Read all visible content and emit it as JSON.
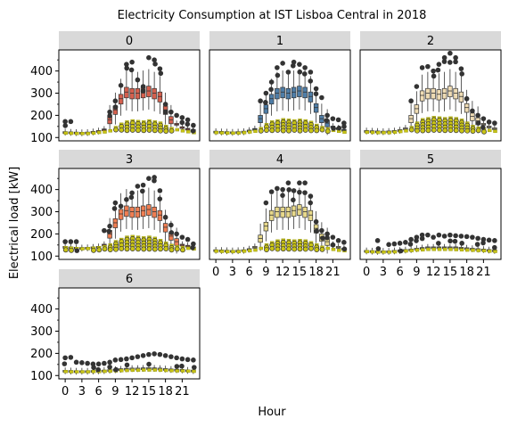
{
  "chart_data": {
    "type": "boxplot-facet",
    "title": "Electricity Consumption at IST Lisboa Central in 2018",
    "xlabel": "Hour",
    "ylabel": "Electrical load [kW]",
    "ylim": [
      85,
      495
    ],
    "yticks": [
      100,
      200,
      300,
      400
    ],
    "xtick_labels": [
      "0",
      "3",
      "6",
      "9",
      "12",
      "15",
      "18",
      "21"
    ],
    "hours": [
      0,
      1,
      2,
      3,
      4,
      5,
      6,
      7,
      8,
      9,
      10,
      11,
      12,
      13,
      14,
      15,
      16,
      17,
      18,
      19,
      20,
      21,
      22,
      23
    ],
    "colors": {
      "0": "#d5604e",
      "1": "#4f7ea8",
      "2": "#efdcb4",
      "3": "#f07e52",
      "4": "#e8d98a",
      "5": "#f0e2b0",
      "6": "#f4eee0",
      "yellow_box": "#c9c415",
      "outlier": "#333333",
      "strip_bg": "#d9d9d9"
    },
    "facets": [
      {
        "label": "0",
        "main_median": [
          123,
          122,
          121,
          120,
          121,
          124,
          128,
          135,
          180,
          225,
          275,
          305,
          300,
          300,
          305,
          310,
          300,
          285,
          225,
          180,
          160,
          145,
          138,
          132
        ],
        "yellow_median": [
          120,
          119,
          118,
          118,
          118,
          120,
          123,
          125,
          130,
          145,
          160,
          170,
          175,
          172,
          170,
          175,
          170,
          165,
          150,
          140,
          135,
          130,
          126,
          122
        ],
        "outliers_high": [
          [
            0,
            172
          ],
          [
            1,
            172
          ],
          [
            8,
            215
          ],
          [
            9,
            265
          ],
          [
            10,
            335
          ],
          [
            11,
            430
          ],
          [
            12,
            440
          ],
          [
            13,
            360
          ],
          [
            14,
            330
          ],
          [
            15,
            460
          ],
          [
            16,
            450
          ],
          [
            17,
            410
          ],
          [
            18,
            250
          ],
          [
            19,
            215
          ],
          [
            20,
            200
          ],
          [
            21,
            190
          ],
          [
            22,
            180
          ],
          [
            23,
            155
          ]
        ]
      },
      {
        "label": "1",
        "main_median": [
          125,
          124,
          123,
          122,
          123,
          125,
          130,
          137,
          185,
          230,
          275,
          300,
          305,
          300,
          305,
          310,
          305,
          285,
          235,
          185,
          165,
          148,
          140,
          133
        ],
        "yellow_median": [
          122,
          121,
          120,
          120,
          120,
          122,
          125,
          128,
          140,
          158,
          170,
          175,
          180,
          178,
          175,
          178,
          175,
          168,
          155,
          145,
          138,
          132,
          128,
          124
        ],
        "outliers_high": [
          [
            8,
            265
          ],
          [
            9,
            300
          ],
          [
            10,
            350
          ],
          [
            11,
            415
          ],
          [
            12,
            435
          ],
          [
            13,
            395
          ],
          [
            14,
            440
          ],
          [
            15,
            430
          ],
          [
            16,
            415
          ],
          [
            17,
            395
          ],
          [
            18,
            320
          ],
          [
            19,
            280
          ],
          [
            20,
            200
          ],
          [
            21,
            185
          ],
          [
            22,
            180
          ],
          [
            23,
            165
          ]
        ]
      },
      {
        "label": "2",
        "main_median": [
          128,
          127,
          126,
          125,
          126,
          128,
          132,
          140,
          185,
          230,
          290,
          300,
          300,
          295,
          300,
          310,
          300,
          285,
          235,
          195,
          175,
          160,
          148,
          140
        ],
        "yellow_median": [
          124,
          123,
          122,
          122,
          122,
          124,
          127,
          130,
          145,
          165,
          180,
          185,
          190,
          188,
          185,
          188,
          185,
          178,
          165,
          150,
          142,
          136,
          132,
          128
        ],
        "outliers_high": [
          [
            8,
            265
          ],
          [
            9,
            330
          ],
          [
            10,
            415
          ],
          [
            11,
            420
          ],
          [
            12,
            400
          ],
          [
            13,
            430
          ],
          [
            14,
            460
          ],
          [
            15,
            480
          ],
          [
            16,
            460
          ],
          [
            17,
            410
          ],
          [
            18,
            275
          ],
          [
            19,
            220
          ],
          [
            20,
            200
          ],
          [
            21,
            185
          ],
          [
            22,
            170
          ],
          [
            23,
            165
          ]
        ]
      },
      {
        "label": "3",
        "main_median": [
          140,
          138,
          136,
          135,
          136,
          138,
          140,
          150,
          200,
          250,
          290,
          305,
          300,
          300,
          305,
          310,
          300,
          285,
          230,
          190,
          165,
          150,
          145,
          138
        ],
        "yellow_median": [
          138,
          136,
          134,
          133,
          134,
          136,
          138,
          142,
          150,
          165,
          175,
          185,
          188,
          185,
          182,
          185,
          180,
          170,
          158,
          148,
          142,
          138,
          135,
          132
        ],
        "outliers_high": [
          [
            0,
            165
          ],
          [
            1,
            165
          ],
          [
            2,
            165
          ],
          [
            7,
            215
          ],
          [
            8,
            235
          ],
          [
            9,
            340
          ],
          [
            10,
            325
          ],
          [
            11,
            355
          ],
          [
            12,
            385
          ],
          [
            13,
            415
          ],
          [
            14,
            420
          ],
          [
            15,
            450
          ],
          [
            16,
            455
          ],
          [
            17,
            395
          ],
          [
            18,
            275
          ],
          [
            19,
            240
          ],
          [
            20,
            200
          ],
          [
            21,
            185
          ],
          [
            22,
            175
          ],
          [
            23,
            155
          ]
        ]
      },
      {
        "label": "4",
        "main_median": [
          125,
          124,
          123,
          122,
          123,
          125,
          130,
          140,
          180,
          235,
          285,
          300,
          300,
          300,
          305,
          310,
          300,
          285,
          225,
          185,
          165,
          150,
          140,
          132
        ],
        "yellow_median": [
          122,
          121,
          120,
          120,
          120,
          122,
          124,
          127,
          135,
          150,
          160,
          168,
          172,
          170,
          168,
          170,
          168,
          160,
          150,
          140,
          135,
          130,
          126,
          124
        ],
        "outliers_high": [
          [
            9,
            340
          ],
          [
            10,
            390
          ],
          [
            11,
            405
          ],
          [
            12,
            400
          ],
          [
            13,
            430
          ],
          [
            14,
            395
          ],
          [
            15,
            430
          ],
          [
            16,
            430
          ],
          [
            17,
            370
          ],
          [
            18,
            255
          ],
          [
            19,
            215
          ],
          [
            20,
            200
          ],
          [
            21,
            185
          ],
          [
            22,
            170
          ],
          [
            23,
            162
          ]
        ]
      },
      {
        "label": "5",
        "main_median": [
          122,
          121,
          120,
          120,
          120,
          122,
          124,
          126,
          128,
          132,
          135,
          138,
          138,
          138,
          138,
          138,
          138,
          136,
          134,
          132,
          130,
          128,
          126,
          124
        ],
        "yellow_median": [
          120,
          119,
          118,
          118,
          118,
          119,
          121,
          123,
          125,
          127,
          128,
          130,
          130,
          130,
          130,
          130,
          129,
          128,
          127,
          126,
          125,
          124,
          122,
          121
        ],
        "outliers_high": [
          [
            2,
            170
          ],
          [
            4,
            152
          ],
          [
            5,
            155
          ],
          [
            6,
            158
          ],
          [
            7,
            162
          ],
          [
            8,
            175
          ],
          [
            9,
            185
          ],
          [
            10,
            195
          ],
          [
            11,
            195
          ],
          [
            12,
            185
          ],
          [
            13,
            195
          ],
          [
            14,
            190
          ],
          [
            15,
            195
          ],
          [
            16,
            192
          ],
          [
            17,
            190
          ],
          [
            18,
            188
          ],
          [
            19,
            185
          ],
          [
            20,
            180
          ],
          [
            21,
            175
          ],
          [
            22,
            172
          ],
          [
            23,
            170
          ]
        ]
      },
      {
        "label": "6",
        "main_median": [
          120,
          119,
          118,
          118,
          118,
          119,
          120,
          121,
          123,
          125,
          127,
          129,
          130,
          130,
          131,
          132,
          131,
          130,
          128,
          126,
          125,
          124,
          122,
          121
        ],
        "yellow_median": [
          118,
          117,
          117,
          117,
          117,
          118,
          118,
          119,
          120,
          121,
          122,
          123,
          124,
          124,
          125,
          125,
          125,
          124,
          123,
          122,
          121,
          121,
          120,
          119
        ],
        "outliers_high": [
          [
            0,
            180
          ],
          [
            1,
            182
          ],
          [
            2,
            160
          ],
          [
            3,
            158
          ],
          [
            4,
            155
          ],
          [
            5,
            152
          ],
          [
            6,
            152
          ],
          [
            7,
            155
          ],
          [
            8,
            160
          ],
          [
            9,
            170
          ],
          [
            10,
            172
          ],
          [
            11,
            175
          ],
          [
            12,
            180
          ],
          [
            13,
            185
          ],
          [
            14,
            190
          ],
          [
            15,
            195
          ],
          [
            16,
            198
          ],
          [
            17,
            195
          ],
          [
            18,
            190
          ],
          [
            19,
            185
          ],
          [
            20,
            180
          ],
          [
            21,
            175
          ],
          [
            22,
            172
          ],
          [
            23,
            170
          ]
        ]
      }
    ]
  }
}
